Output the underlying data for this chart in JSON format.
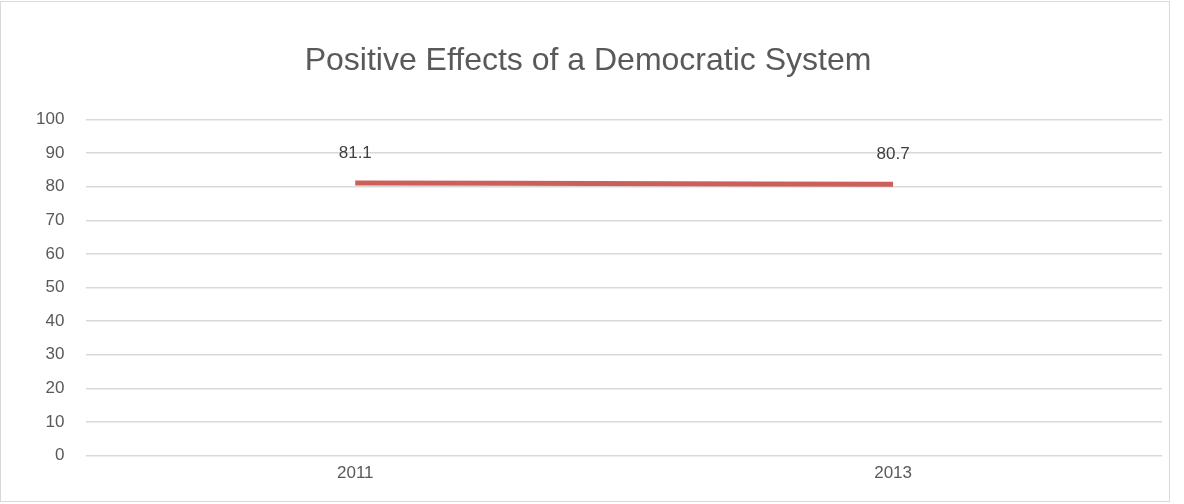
{
  "chart_data": {
    "type": "line",
    "title": "Positive Effects of a Democratic System",
    "categories": [
      "2011",
      "2013"
    ],
    "series": [
      {
        "color": "#cd5f5a",
        "values": [
          81.1,
          80.7
        ]
      }
    ],
    "ylim": [
      0,
      100
    ],
    "yticks": [
      0,
      10,
      20,
      30,
      40,
      50,
      60,
      70,
      80,
      90,
      100
    ],
    "grid": "y",
    "marker": "none",
    "line_style": "solid",
    "data_labels": true
  }
}
